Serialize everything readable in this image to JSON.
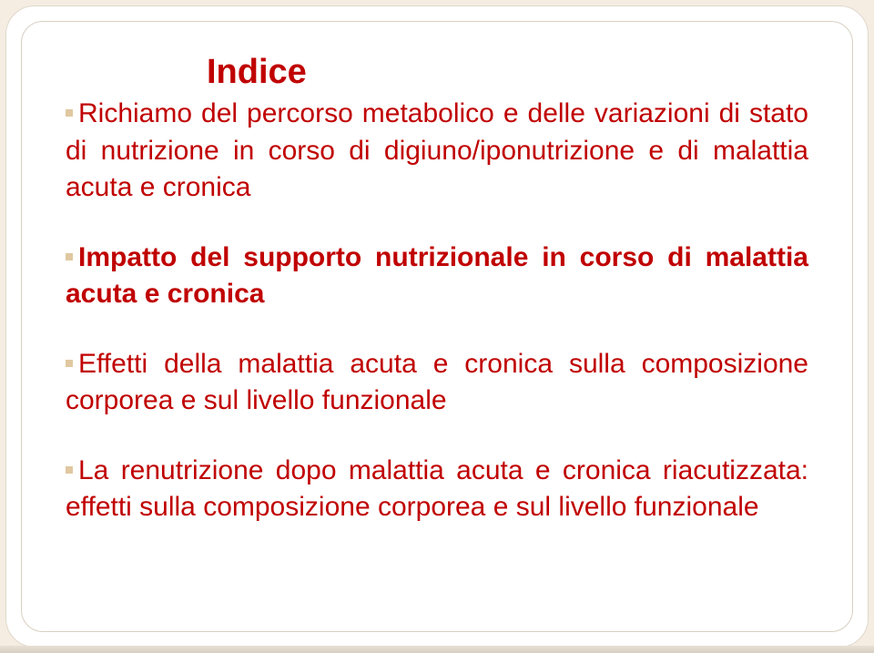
{
  "slide": {
    "title": "Indice",
    "items": [
      "Richiamo del percorso metabolico e delle variazioni di stato di nutrizione in corso di digiuno/iponutrizione e di malattia acuta e cronica",
      "Impatto del supporto nutrizionale in corso di malattia acuta e cronica",
      "Effetti della malattia acuta e cronica sulla composizione corporea e sul livello funzionale",
      "La renutrizione dopo malattia acuta e cronica riacutizzata: effetti sulla composizione corporea e sul livello funzionale"
    ],
    "colors": {
      "background": "#f5ede2",
      "card": "#ffffff",
      "text": "#c00000",
      "bullet": "#e0c8a0",
      "border": "#d8cfc2"
    },
    "fontsize": {
      "title": 38,
      "body": 30
    }
  }
}
